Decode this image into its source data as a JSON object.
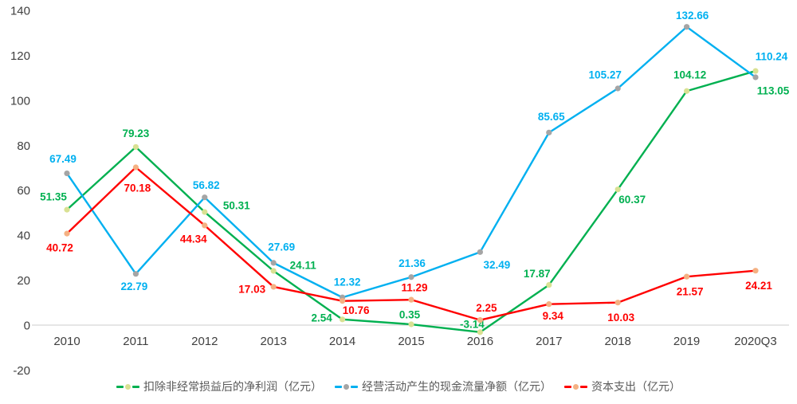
{
  "chart_data": {
    "type": "line",
    "title": "",
    "xlabel": "",
    "ylabel": "",
    "grid": "none",
    "legend_position": "bottom",
    "categories": [
      "2010",
      "2011",
      "2012",
      "2013",
      "2014",
      "2015",
      "2016",
      "2017",
      "2018",
      "2019",
      "2020Q3"
    ],
    "y_axis": {
      "min": -20,
      "max": 140,
      "step": 20,
      "ticks": [
        140,
        120,
        100,
        80,
        60,
        40,
        20,
        0,
        -20
      ]
    },
    "axis_colors": {
      "tick_label": "#404040",
      "axis_line": "#d6d6d6"
    },
    "series": [
      {
        "name": "扣除非经常损益后的净利润（亿元）",
        "line_color": "#00B050",
        "marker_color": "#D9E193",
        "label_color": "#00B050",
        "values": [
          51.35,
          79.23,
          50.31,
          24.11,
          2.54,
          0.35,
          -3.14,
          17.87,
          60.37,
          104.12,
          113.05
        ],
        "label_offsets": [
          [
            -17,
            -16
          ],
          [
            0,
            -17
          ],
          [
            40,
            -8
          ],
          [
            37,
            -7
          ],
          [
            -26,
            -2
          ],
          [
            -2,
            -12
          ],
          [
            -10,
            -10
          ],
          [
            -15,
            -14
          ],
          [
            18,
            13
          ],
          [
            4,
            -20
          ],
          [
            22,
            25
          ]
        ]
      },
      {
        "name": "经营活动产生的现金流量净额（亿元）",
        "line_color": "#00B0F0",
        "marker_color": "#A5A5A5",
        "label_color": "#00B0F0",
        "values": [
          67.49,
          22.79,
          56.82,
          27.69,
          12.32,
          21.36,
          32.49,
          85.65,
          105.27,
          132.66,
          110.24
        ],
        "label_offsets": [
          [
            -5,
            -18
          ],
          [
            -2,
            16
          ],
          [
            2,
            -15
          ],
          [
            10,
            -20
          ],
          [
            6,
            -19
          ],
          [
            1,
            -17
          ],
          [
            21,
            16
          ],
          [
            3,
            -20
          ],
          [
            -16,
            -17
          ],
          [
            7,
            -14
          ],
          [
            20,
            -26
          ]
        ]
      },
      {
        "name": "资本支出（亿元）",
        "line_color": "#FF0000",
        "marker_color": "#F4B183",
        "label_color": "#FF0000",
        "values": [
          40.72,
          70.18,
          44.34,
          17.03,
          10.76,
          11.29,
          2.25,
          9.34,
          10.03,
          21.57,
          24.21
        ],
        "label_offsets": [
          [
            -9,
            18
          ],
          [
            2,
            26
          ],
          [
            -14,
            17
          ],
          [
            -27,
            3
          ],
          [
            17,
            12
          ],
          [
            4,
            -15
          ],
          [
            8,
            -15
          ],
          [
            5,
            15
          ],
          [
            4,
            19
          ],
          [
            4,
            19
          ],
          [
            4,
            19
          ]
        ]
      }
    ]
  }
}
